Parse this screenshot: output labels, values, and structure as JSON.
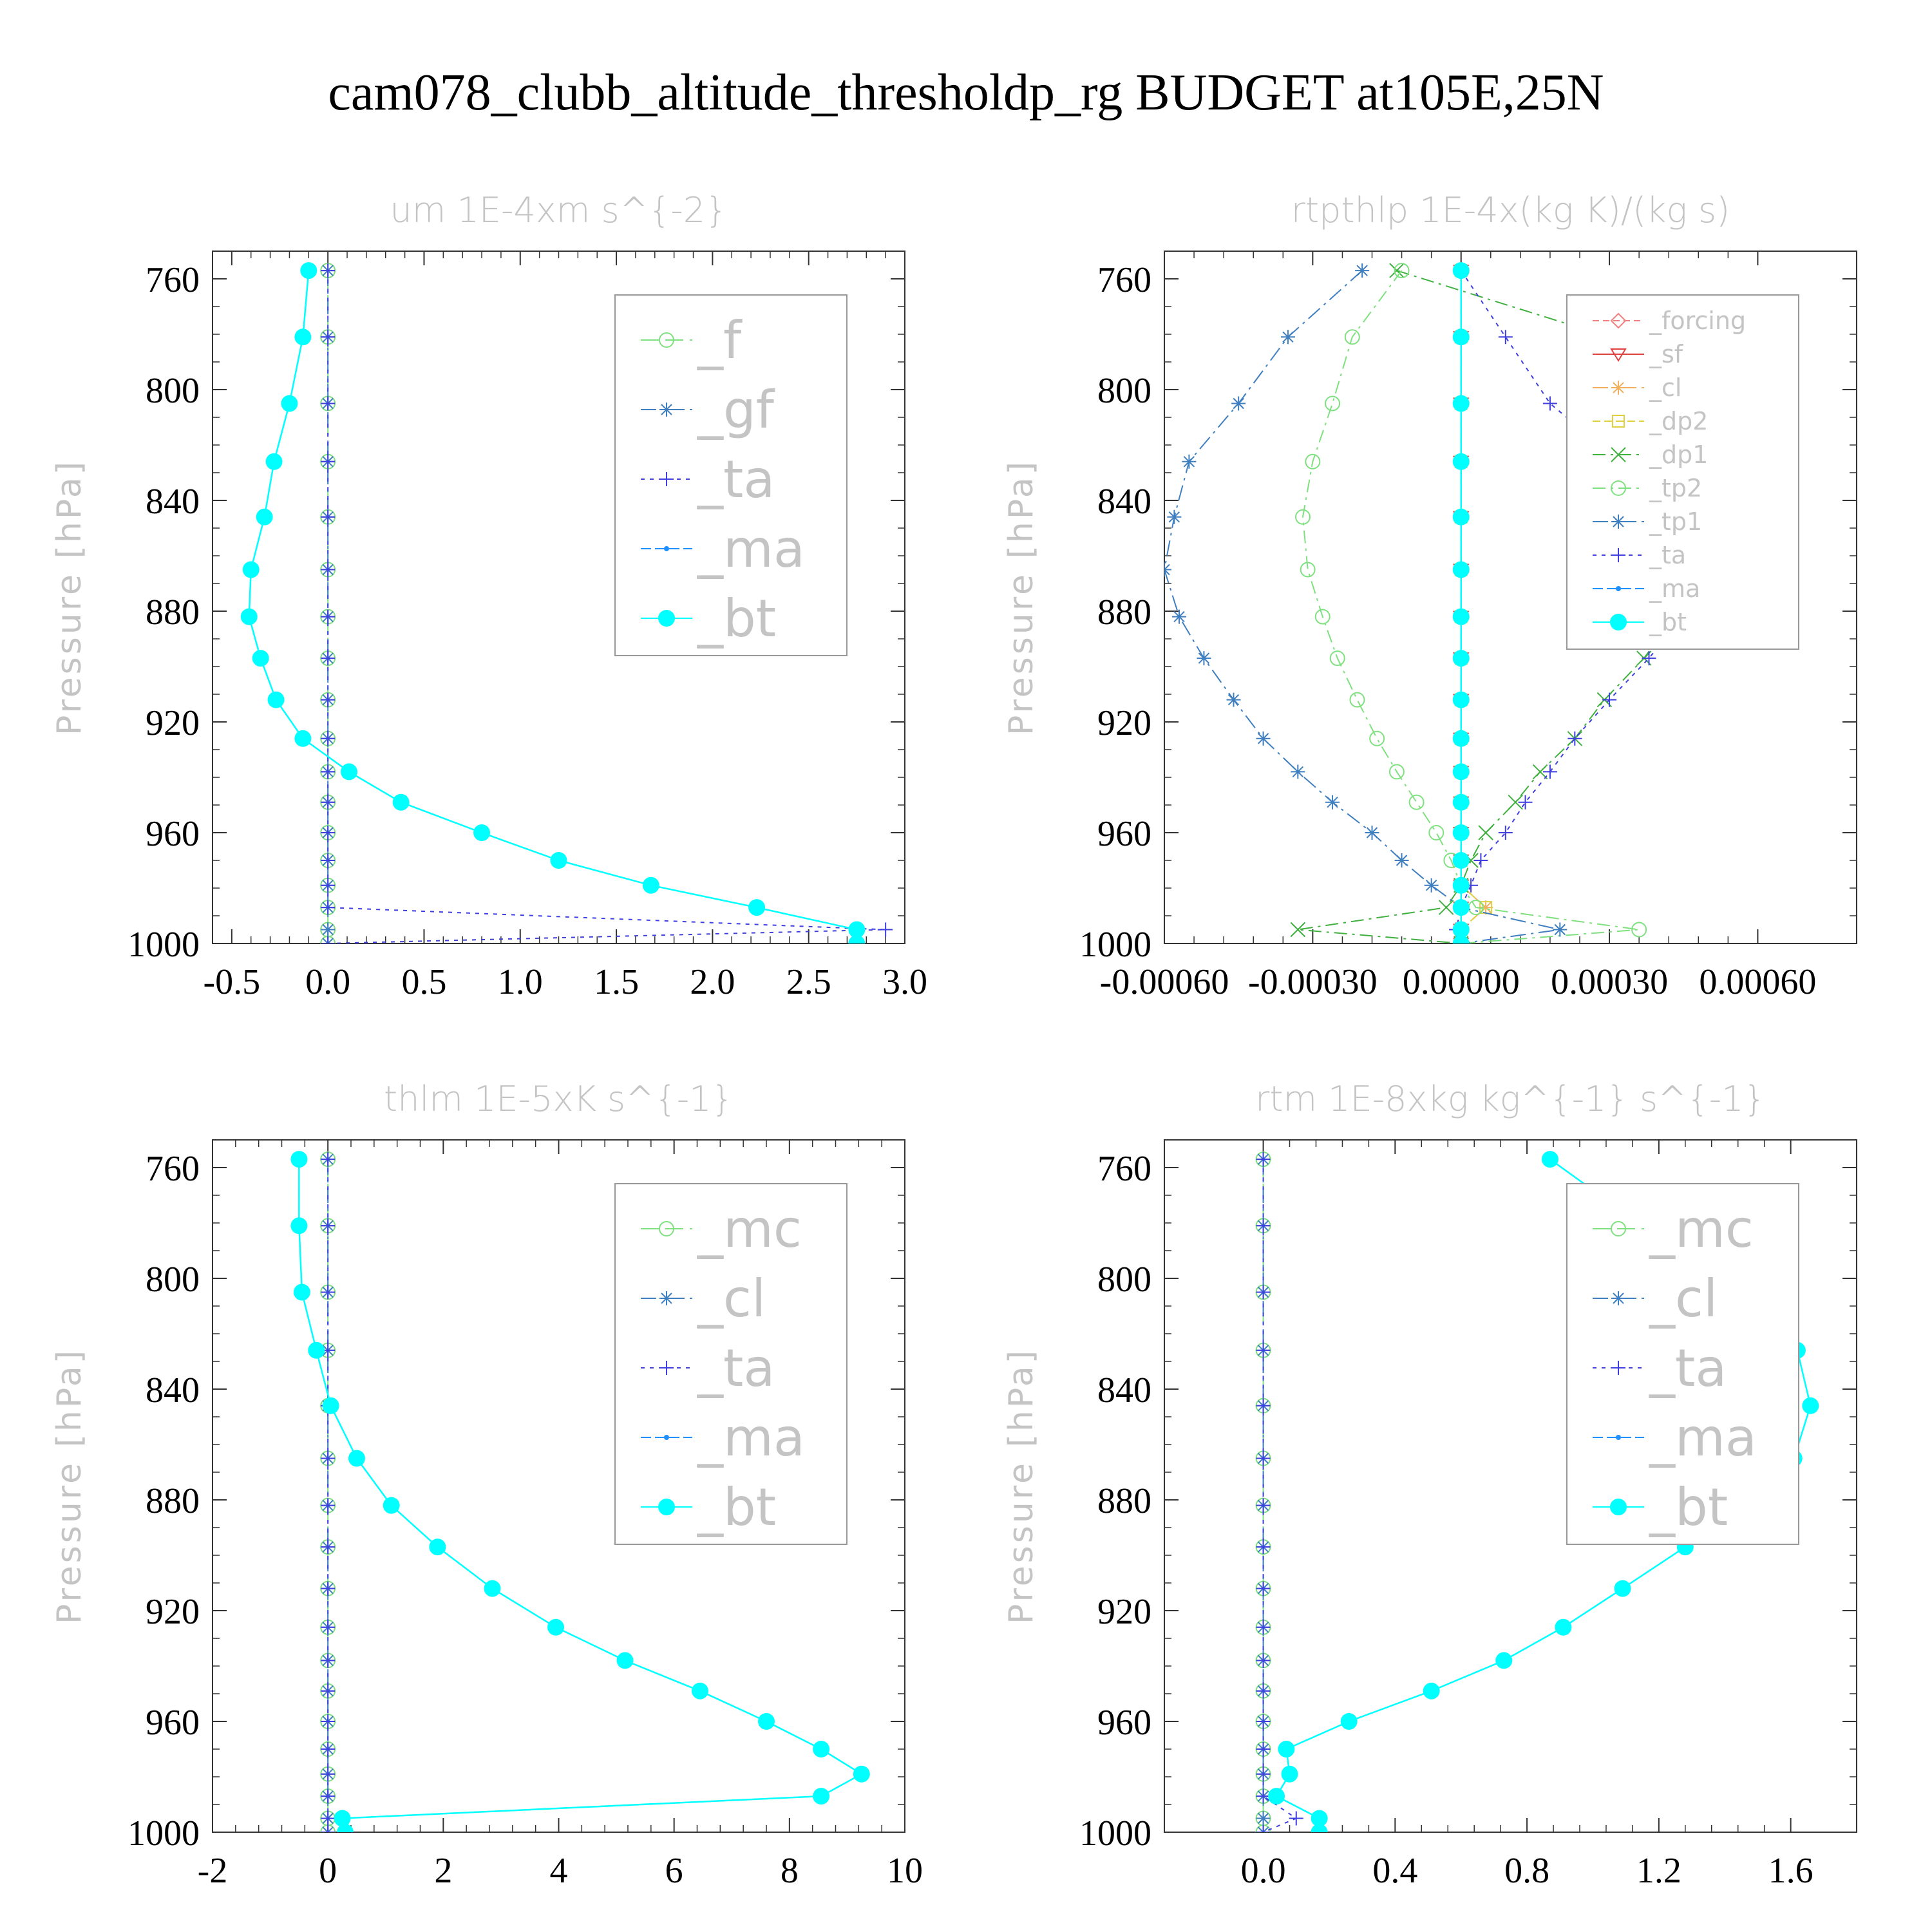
{
  "title": "cam078_clubb_altitude_thresholdp_rg  BUDGET at105E,25N",
  "colors": {
    "_f": "#7fe07f",
    "_gf": "#3f7fbf",
    "_ta": "#3f3fdf",
    "_ma": "#1e90ff",
    "_bt": "#00ffff",
    "_mc": "#7fe07f",
    "_cl": "#3f7fbf",
    "_forcing": "#f08080",
    "_sf": "#e04040",
    "_cl_r": "#f0b060",
    "_dp2": "#e0d040",
    "_dp1": "#40b040",
    "_tp2": "#7fe07f",
    "_tp1": "#3f7fbf"
  },
  "pressure_levels": [
    757,
    781,
    805,
    826,
    846,
    865,
    882,
    897,
    912,
    926,
    938,
    949,
    960,
    970,
    979,
    987,
    995,
    1000
  ],
  "chart_data": [
    {
      "type": "line",
      "title": "um  1E-4xm s^{-2}",
      "ylabel": "Pressure [hPa]",
      "xlim": [
        -0.6,
        3.0
      ],
      "ylim": [
        1000,
        750
      ],
      "xticks": [
        -0.5,
        0.0,
        0.5,
        1.0,
        1.5,
        2.0,
        2.5,
        3.0
      ],
      "xtick_labels": [
        "-0.5",
        "0.0",
        "0.5",
        "1.0",
        "1.5",
        "2.0",
        "2.5",
        "3.0"
      ],
      "yticks": [
        760,
        800,
        840,
        880,
        920,
        960,
        1000
      ],
      "legend": "top-right",
      "series": [
        {
          "name": "_f",
          "values": [
            0,
            0,
            0,
            0,
            0,
            0,
            0,
            0,
            0,
            0,
            0,
            0,
            0,
            0,
            0,
            0,
            0,
            0
          ]
        },
        {
          "name": "_gf",
          "values": [
            0,
            0,
            0,
            0,
            0,
            0,
            0,
            0,
            0,
            0,
            0,
            0,
            0,
            0,
            0,
            0,
            0,
            0
          ]
        },
        {
          "name": "_ta",
          "values": [
            0,
            0,
            0,
            0,
            0,
            0,
            0,
            0,
            0,
            0,
            0,
            0,
            0,
            0,
            0,
            0,
            2.9,
            0
          ]
        },
        {
          "name": "_ma",
          "values": [
            -0.1,
            -0.13,
            -0.2,
            -0.28,
            -0.33,
            -0.4,
            -0.41,
            -0.35,
            -0.27,
            -0.13,
            0.11,
            0.38,
            0.8,
            1.2,
            1.68,
            2.23,
            2.75,
            2.75
          ]
        },
        {
          "name": "_bt",
          "values": [
            -0.1,
            -0.13,
            -0.2,
            -0.28,
            -0.33,
            -0.4,
            -0.41,
            -0.35,
            -0.27,
            -0.13,
            0.11,
            0.38,
            0.8,
            1.2,
            1.68,
            2.23,
            2.75,
            2.75
          ]
        }
      ]
    },
    {
      "type": "line",
      "title": "rtpthlp  1E-4x(kg K)/(kg s)",
      "ylabel": "Pressure [hPa]",
      "xlim": [
        -0.0006,
        0.0008
      ],
      "ylim": [
        1000,
        750
      ],
      "xticks": [
        -0.0006,
        -0.0003,
        0.0,
        0.0003,
        0.0006
      ],
      "xtick_labels": [
        "-0.00060",
        "-0.00030",
        "0.00000",
        "0.00030",
        "0.00060"
      ],
      "yticks": [
        760,
        800,
        840,
        880,
        920,
        960,
        1000
      ],
      "legend": "top-right",
      "series": [
        {
          "name": "_forcing",
          "values": [
            0,
            0,
            0,
            0,
            0,
            0,
            0,
            0,
            0,
            0,
            0,
            0,
            0,
            0,
            0,
            0,
            0,
            0
          ]
        },
        {
          "name": "_sf",
          "values": [
            0,
            0,
            0,
            0,
            0,
            0,
            0,
            0,
            0,
            0,
            0,
            0,
            0,
            0,
            0,
            0,
            0,
            0
          ]
        },
        {
          "name": "_cl",
          "values": [
            0,
            0,
            0,
            0,
            0,
            0,
            0,
            0,
            0,
            0,
            0,
            0,
            0,
            0,
            0,
            5e-05,
            0,
            0
          ]
        },
        {
          "name": "_dp2",
          "values": [
            0,
            0,
            0,
            0,
            0,
            0,
            0,
            0,
            0,
            0,
            0,
            0,
            0,
            0,
            0,
            5e-05,
            0,
            0
          ]
        },
        {
          "name": "_dp1",
          "values": [
            -0.00013,
            0.0003,
            0.00063,
            0.00066,
            0.0006,
            0.00052,
            0.00043,
            0.00037,
            0.00029,
            0.00023,
            0.00016,
            0.00011,
            5e-05,
            2e-05,
            0.0,
            -3e-05,
            -0.00033,
            0.0
          ]
        },
        {
          "name": "_tp2",
          "values": [
            -0.00012,
            -0.00022,
            -0.00026,
            -0.0003,
            -0.00032,
            -0.00031,
            -0.00028,
            -0.00025,
            -0.00021,
            -0.00017,
            -0.00013,
            -9e-05,
            -5e-05,
            -2e-05,
            0.0,
            3e-05,
            0.00036,
            0.0
          ]
        },
        {
          "name": "_tp1",
          "values": [
            -0.0002,
            -0.00035,
            -0.00045,
            -0.00055,
            -0.00058,
            -0.0006,
            -0.00057,
            -0.00052,
            -0.00046,
            -0.0004,
            -0.00033,
            -0.00026,
            -0.00018,
            -0.00012,
            -6e-05,
            0.0,
            0.0002,
            0.0
          ]
        },
        {
          "name": "_ta",
          "values": [
            0,
            9e-05,
            0.00018,
            0.00032,
            0.00045,
            0.00048,
            0.00045,
            0.00038,
            0.0003,
            0.00023,
            0.00018,
            0.00013,
            9e-05,
            4e-05,
            2e-05,
            0.0,
            -1e-05,
            0.0
          ]
        },
        {
          "name": "_ma",
          "values": [
            0,
            0,
            0,
            0,
            0,
            0,
            0,
            0,
            0,
            0,
            0,
            0,
            0,
            0,
            0,
            0,
            0,
            0
          ]
        },
        {
          "name": "_bt",
          "values": [
            0,
            0,
            0,
            0,
            0,
            0,
            0,
            0,
            0,
            0,
            0,
            0,
            0,
            0,
            0,
            0,
            0,
            0
          ]
        }
      ]
    },
    {
      "type": "line",
      "title": "thlm  1E-5xK s^{-1}",
      "ylabel": "Pressure [hPa]",
      "xlim": [
        -2,
        10
      ],
      "ylim": [
        1000,
        750
      ],
      "xticks": [
        -2,
        0,
        2,
        4,
        6,
        8,
        10
      ],
      "xtick_labels": [
        "-2",
        "0",
        "2",
        "4",
        "6",
        "8",
        "10"
      ],
      "yticks": [
        760,
        800,
        840,
        880,
        920,
        960,
        1000
      ],
      "legend": "top-right",
      "series": [
        {
          "name": "_mc",
          "values": [
            0,
            0,
            0,
            0,
            0,
            0,
            0,
            0,
            0,
            0,
            0,
            0,
            0,
            0,
            0,
            0,
            0,
            0
          ]
        },
        {
          "name": "_cl",
          "values": [
            0,
            0,
            0,
            0,
            0,
            0,
            0,
            0,
            0,
            0,
            0,
            0,
            0,
            0,
            0,
            0,
            0,
            0
          ]
        },
        {
          "name": "_ta",
          "values": [
            0,
            0,
            0,
            0,
            0,
            0,
            0,
            0,
            0,
            0,
            0,
            0,
            0,
            0,
            0,
            0,
            0,
            0
          ]
        },
        {
          "name": "_ma",
          "values": [
            -0.5,
            -0.5,
            -0.45,
            -0.2,
            0.05,
            0.5,
            1.1,
            1.9,
            2.85,
            3.95,
            5.15,
            6.45,
            7.6,
            8.55,
            9.25,
            8.55,
            0.25,
            0.3
          ]
        },
        {
          "name": "_bt",
          "values": [
            -0.5,
            -0.5,
            -0.45,
            -0.2,
            0.05,
            0.5,
            1.1,
            1.9,
            2.85,
            3.95,
            5.15,
            6.45,
            7.6,
            8.55,
            9.25,
            8.55,
            0.25,
            0.3
          ]
        }
      ]
    },
    {
      "type": "line",
      "title": "rtm  1E-8xkg kg^{-1} s^{-1}",
      "ylabel": "Pressure [hPa]",
      "xlim": [
        -0.3,
        1.8
      ],
      "ylim": [
        1000,
        750
      ],
      "xticks": [
        0.0,
        0.4,
        0.8,
        1.2,
        1.6
      ],
      "xtick_labels": [
        "0.0",
        "0.4",
        "0.8",
        "1.2",
        "1.6"
      ],
      "yticks": [
        760,
        800,
        840,
        880,
        920,
        960,
        1000
      ],
      "legend": "top-right",
      "series": [
        {
          "name": "_mc",
          "values": [
            0,
            0,
            0,
            0,
            0,
            0,
            0,
            0,
            0,
            0,
            0,
            0,
            0,
            0,
            0,
            0,
            0,
            0
          ]
        },
        {
          "name": "_cl",
          "values": [
            0,
            0,
            0,
            0,
            0,
            0,
            0,
            0,
            0,
            0,
            0,
            0,
            0,
            0,
            0,
            0,
            0,
            0
          ]
        },
        {
          "name": "_ta",
          "values": [
            0,
            0,
            0,
            0,
            0,
            0,
            0,
            0,
            0,
            0,
            0,
            0,
            0,
            0,
            0,
            0,
            0.1,
            0
          ]
        },
        {
          "name": "_ma",
          "values": [
            0.87,
            1.15,
            1.42,
            1.62,
            1.66,
            1.61,
            1.46,
            1.28,
            1.09,
            0.91,
            0.73,
            0.51,
            0.26,
            0.07,
            0.08,
            0.04,
            0.17,
            0.17
          ]
        },
        {
          "name": "_bt",
          "values": [
            0.87,
            1.15,
            1.42,
            1.62,
            1.66,
            1.61,
            1.46,
            1.28,
            1.09,
            0.91,
            0.73,
            0.51,
            0.26,
            0.07,
            0.08,
            0.04,
            0.17,
            0.17
          ]
        }
      ]
    }
  ]
}
